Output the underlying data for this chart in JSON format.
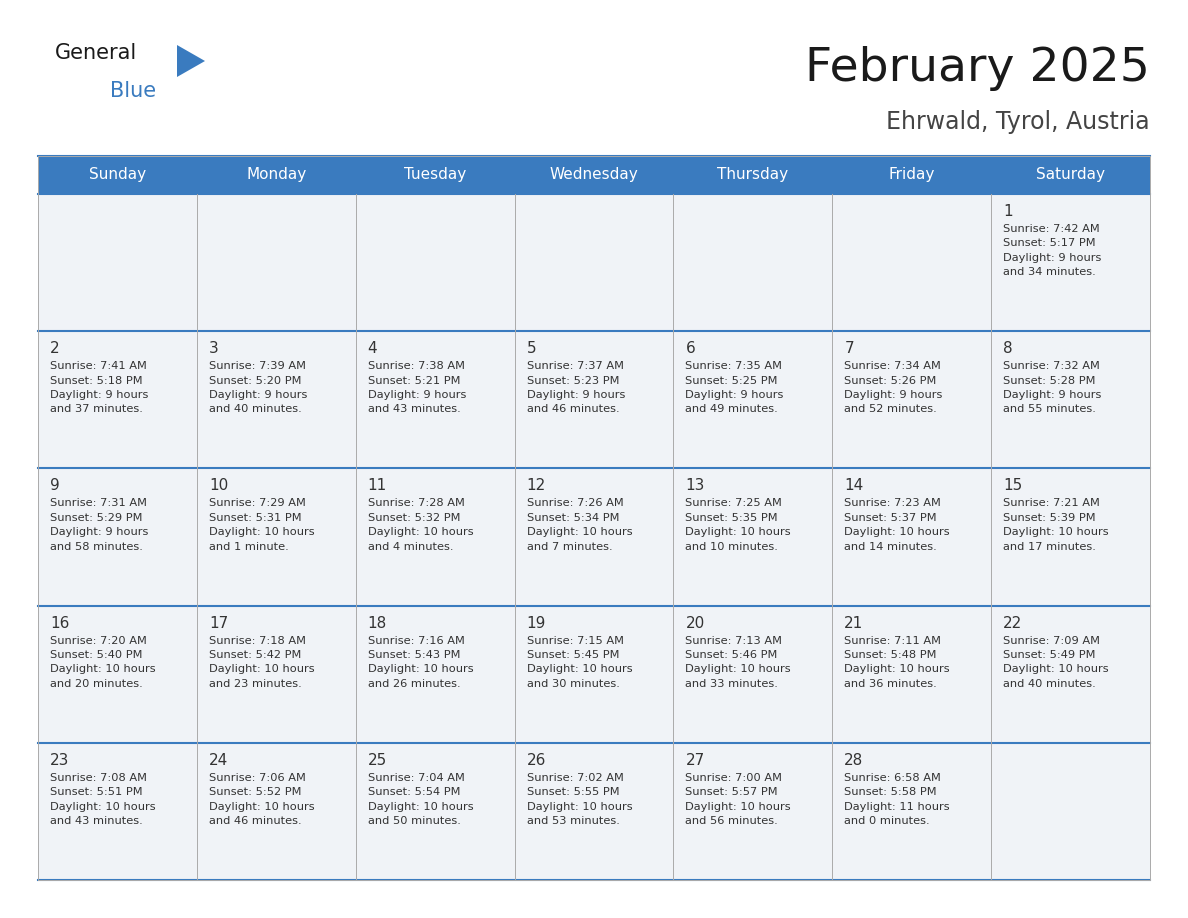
{
  "title": "February 2025",
  "subtitle": "Ehrwald, Tyrol, Austria",
  "header_color": "#3a7bbf",
  "header_text_color": "#ffffff",
  "days_of_week": [
    "Sunday",
    "Monday",
    "Tuesday",
    "Wednesday",
    "Thursday",
    "Friday",
    "Saturday"
  ],
  "bg_color": "#ffffff",
  "cell_bg": "#f0f3f7",
  "day_number_color": "#333333",
  "text_color": "#333333",
  "grid_line_color": "#3a7bbf",
  "separator_color": "#aaaaaa",
  "calendar_data": [
    [
      {
        "day": null,
        "info": null
      },
      {
        "day": null,
        "info": null
      },
      {
        "day": null,
        "info": null
      },
      {
        "day": null,
        "info": null
      },
      {
        "day": null,
        "info": null
      },
      {
        "day": null,
        "info": null
      },
      {
        "day": 1,
        "info": "Sunrise: 7:42 AM\nSunset: 5:17 PM\nDaylight: 9 hours\nand 34 minutes."
      }
    ],
    [
      {
        "day": 2,
        "info": "Sunrise: 7:41 AM\nSunset: 5:18 PM\nDaylight: 9 hours\nand 37 minutes."
      },
      {
        "day": 3,
        "info": "Sunrise: 7:39 AM\nSunset: 5:20 PM\nDaylight: 9 hours\nand 40 minutes."
      },
      {
        "day": 4,
        "info": "Sunrise: 7:38 AM\nSunset: 5:21 PM\nDaylight: 9 hours\nand 43 minutes."
      },
      {
        "day": 5,
        "info": "Sunrise: 7:37 AM\nSunset: 5:23 PM\nDaylight: 9 hours\nand 46 minutes."
      },
      {
        "day": 6,
        "info": "Sunrise: 7:35 AM\nSunset: 5:25 PM\nDaylight: 9 hours\nand 49 minutes."
      },
      {
        "day": 7,
        "info": "Sunrise: 7:34 AM\nSunset: 5:26 PM\nDaylight: 9 hours\nand 52 minutes."
      },
      {
        "day": 8,
        "info": "Sunrise: 7:32 AM\nSunset: 5:28 PM\nDaylight: 9 hours\nand 55 minutes."
      }
    ],
    [
      {
        "day": 9,
        "info": "Sunrise: 7:31 AM\nSunset: 5:29 PM\nDaylight: 9 hours\nand 58 minutes."
      },
      {
        "day": 10,
        "info": "Sunrise: 7:29 AM\nSunset: 5:31 PM\nDaylight: 10 hours\nand 1 minute."
      },
      {
        "day": 11,
        "info": "Sunrise: 7:28 AM\nSunset: 5:32 PM\nDaylight: 10 hours\nand 4 minutes."
      },
      {
        "day": 12,
        "info": "Sunrise: 7:26 AM\nSunset: 5:34 PM\nDaylight: 10 hours\nand 7 minutes."
      },
      {
        "day": 13,
        "info": "Sunrise: 7:25 AM\nSunset: 5:35 PM\nDaylight: 10 hours\nand 10 minutes."
      },
      {
        "day": 14,
        "info": "Sunrise: 7:23 AM\nSunset: 5:37 PM\nDaylight: 10 hours\nand 14 minutes."
      },
      {
        "day": 15,
        "info": "Sunrise: 7:21 AM\nSunset: 5:39 PM\nDaylight: 10 hours\nand 17 minutes."
      }
    ],
    [
      {
        "day": 16,
        "info": "Sunrise: 7:20 AM\nSunset: 5:40 PM\nDaylight: 10 hours\nand 20 minutes."
      },
      {
        "day": 17,
        "info": "Sunrise: 7:18 AM\nSunset: 5:42 PM\nDaylight: 10 hours\nand 23 minutes."
      },
      {
        "day": 18,
        "info": "Sunrise: 7:16 AM\nSunset: 5:43 PM\nDaylight: 10 hours\nand 26 minutes."
      },
      {
        "day": 19,
        "info": "Sunrise: 7:15 AM\nSunset: 5:45 PM\nDaylight: 10 hours\nand 30 minutes."
      },
      {
        "day": 20,
        "info": "Sunrise: 7:13 AM\nSunset: 5:46 PM\nDaylight: 10 hours\nand 33 minutes."
      },
      {
        "day": 21,
        "info": "Sunrise: 7:11 AM\nSunset: 5:48 PM\nDaylight: 10 hours\nand 36 minutes."
      },
      {
        "day": 22,
        "info": "Sunrise: 7:09 AM\nSunset: 5:49 PM\nDaylight: 10 hours\nand 40 minutes."
      }
    ],
    [
      {
        "day": 23,
        "info": "Sunrise: 7:08 AM\nSunset: 5:51 PM\nDaylight: 10 hours\nand 43 minutes."
      },
      {
        "day": 24,
        "info": "Sunrise: 7:06 AM\nSunset: 5:52 PM\nDaylight: 10 hours\nand 46 minutes."
      },
      {
        "day": 25,
        "info": "Sunrise: 7:04 AM\nSunset: 5:54 PM\nDaylight: 10 hours\nand 50 minutes."
      },
      {
        "day": 26,
        "info": "Sunrise: 7:02 AM\nSunset: 5:55 PM\nDaylight: 10 hours\nand 53 minutes."
      },
      {
        "day": 27,
        "info": "Sunrise: 7:00 AM\nSunset: 5:57 PM\nDaylight: 10 hours\nand 56 minutes."
      },
      {
        "day": 28,
        "info": "Sunrise: 6:58 AM\nSunset: 5:58 PM\nDaylight: 11 hours\nand 0 minutes."
      },
      {
        "day": null,
        "info": null
      }
    ]
  ]
}
